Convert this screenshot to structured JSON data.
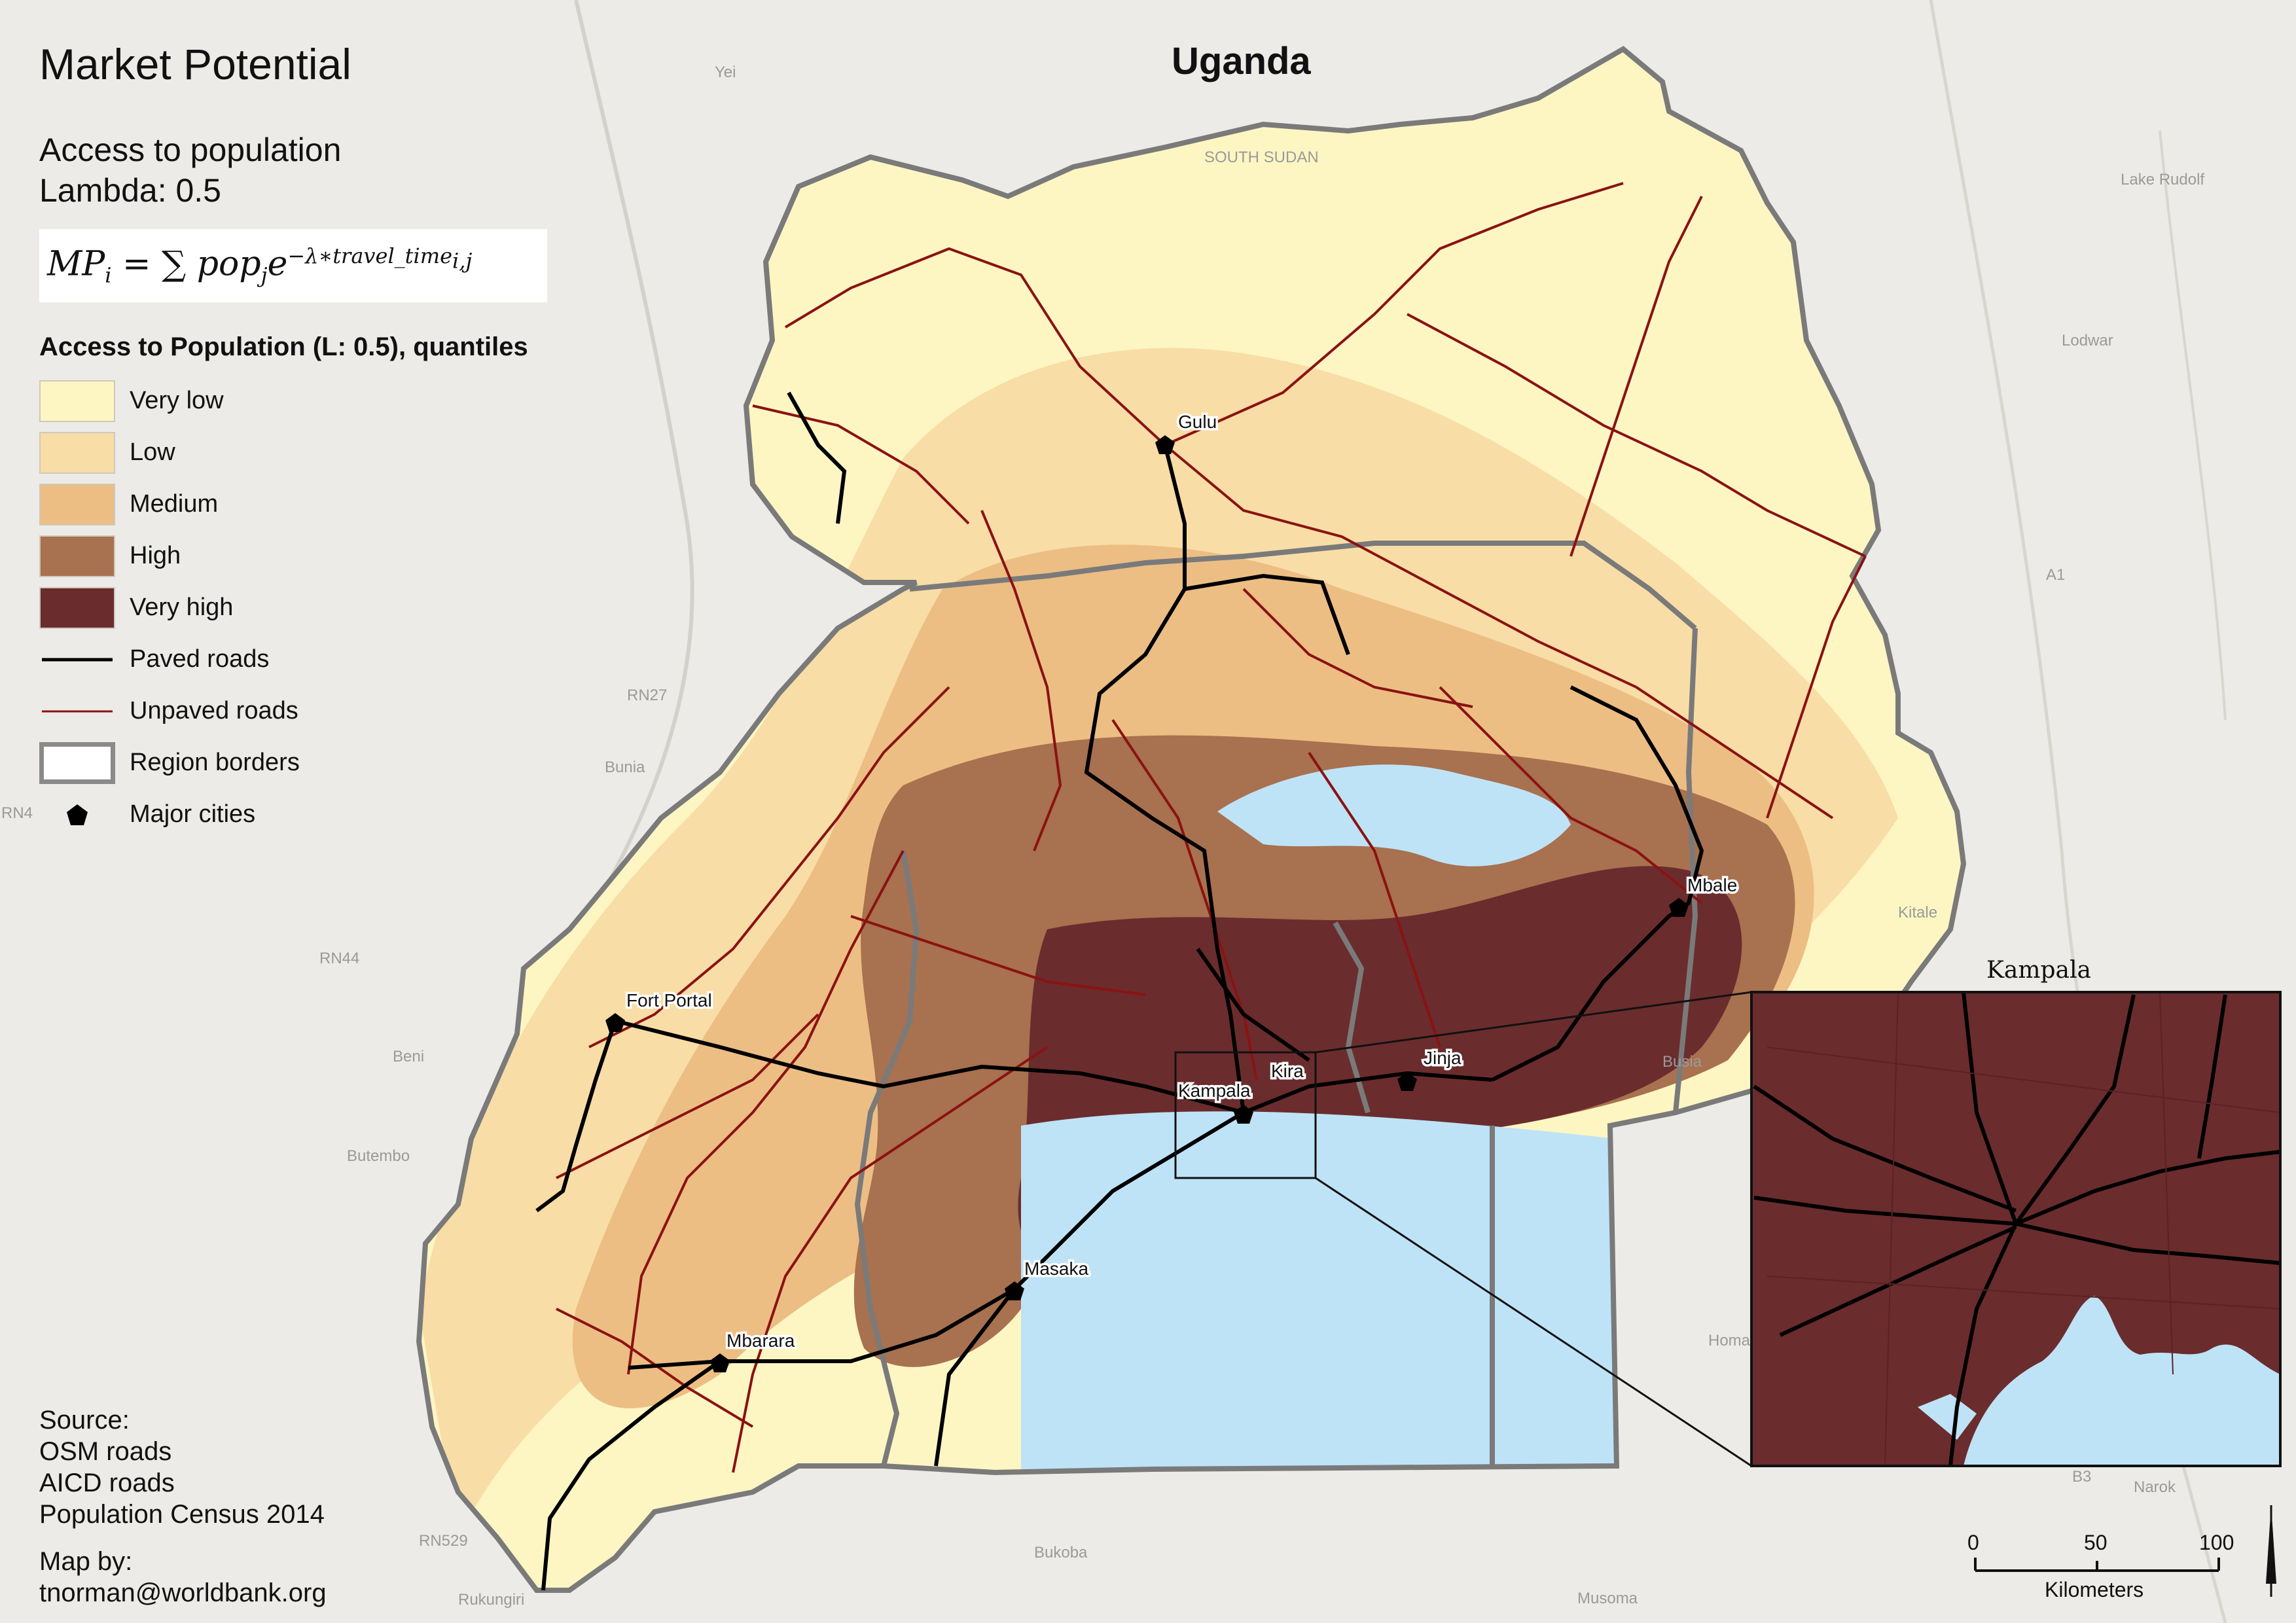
{
  "title": "Market Potential",
  "country": "Uganda",
  "subtitle_line1": "Access to population",
  "subtitle_line2": "Lambda: 0.5",
  "formula": {
    "lhs": "MP",
    "lhs_sub": "i",
    "equals": " = ∑ ",
    "term": "pop",
    "term_sub": "j",
    "base": "e",
    "exponent": "−λ∗travel_time",
    "exponent_sub": "i,j"
  },
  "legend": {
    "title": "Access to Population (L: 0.5), quantiles",
    "classes": [
      {
        "label": "Very low",
        "color": "#fdf6c3"
      },
      {
        "label": "Low",
        "color": "#f8dda6"
      },
      {
        "label": "Medium",
        "color": "#ecbe84"
      },
      {
        "label": "High",
        "color": "#a8714f"
      },
      {
        "label": "Very high",
        "color": "#6b2c2e"
      }
    ],
    "paved": {
      "label": "Paved roads",
      "color": "#000000"
    },
    "unpaved": {
      "label": "Unpaved roads",
      "color": "#8b1212"
    },
    "borders": {
      "label": "Region borders"
    },
    "cities": {
      "label": "Major cities"
    }
  },
  "colors": {
    "water": "#bee3f7",
    "background": "#ecebe7",
    "region_border": "#7a7a7a"
  },
  "source": {
    "heading": "Source:",
    "lines": [
      "OSM roads",
      "AICD roads",
      "Population Census 2014"
    ]
  },
  "credit": {
    "heading": "Map by:",
    "email": "tnorman@worldbank.org"
  },
  "cities": [
    {
      "name": "Gulu"
    },
    {
      "name": "Mbale"
    },
    {
      "name": "Fort Portal"
    },
    {
      "name": "Kira"
    },
    {
      "name": "Kampala"
    },
    {
      "name": "Jinja"
    },
    {
      "name": "Masaka"
    },
    {
      "name": "Mbarara"
    }
  ],
  "background_labels": [
    "SOUTH SUDAN",
    "Yei",
    "Lake Rudolf",
    "Lodwar",
    "Bunia",
    "Beni",
    "Butembo",
    "Kitale",
    "Busia",
    "Narok",
    "Bukoba",
    "Musoma",
    "Rukungiri",
    "Homa Bay",
    "RN27",
    "RN44",
    "RN4",
    "RN529",
    "A1",
    "B3"
  ],
  "inset": {
    "title": "Kampala"
  },
  "scale": {
    "ticks": [
      "0",
      "50",
      "100"
    ],
    "unit": "Kilometers"
  }
}
